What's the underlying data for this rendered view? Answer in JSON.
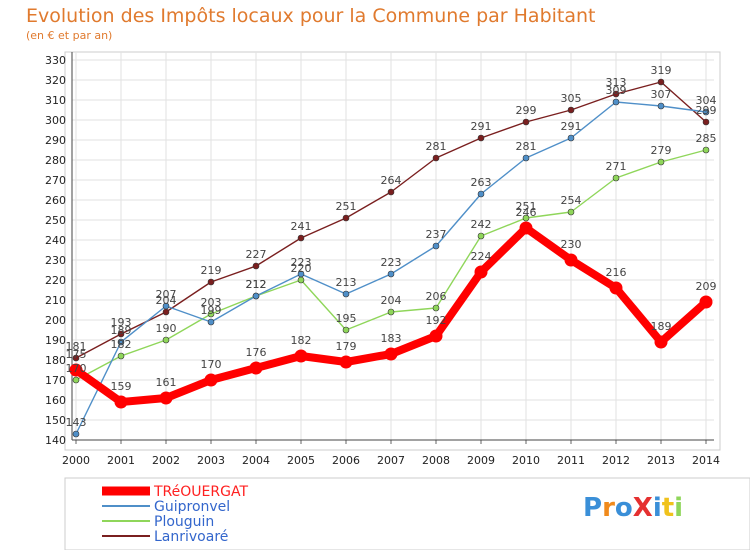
{
  "chart_data": {
    "type": "line",
    "title": "Evolution des Impôts locaux pour la Commune par Habitant",
    "subtitle": "(en € et par an)",
    "x": [
      "2000",
      "2001",
      "2002",
      "2003",
      "2004",
      "2005",
      "2006",
      "2007",
      "2008",
      "2009",
      "2010",
      "2011",
      "2012",
      "2013",
      "2014"
    ],
    "ylim": [
      140,
      330
    ],
    "yticks": [
      140,
      150,
      160,
      170,
      180,
      190,
      200,
      210,
      220,
      230,
      240,
      250,
      260,
      270,
      280,
      290,
      300,
      310,
      320,
      330
    ],
    "grid": true,
    "legend_position": "bottom-left",
    "series": [
      {
        "name": "TRéOUERGAT",
        "color": "#ff0000",
        "values": [
          175,
          159,
          161,
          170,
          176,
          182,
          179,
          183,
          192,
          224,
          246,
          230,
          216,
          189,
          209
        ]
      },
      {
        "name": "Guipronvel",
        "color": "#4f8fc8",
        "values": [
          143,
          189,
          207,
          199,
          212,
          223,
          213,
          223,
          237,
          263,
          281,
          291,
          309,
          307,
          304
        ]
      },
      {
        "name": "Plouguin",
        "color": "#8fd65a",
        "values": [
          170,
          182,
          190,
          203,
          212,
          220,
          195,
          204,
          206,
          242,
          251,
          254,
          271,
          279,
          285
        ]
      },
      {
        "name": "Lanrivoaré",
        "color": "#7a1f1f",
        "values": [
          181,
          193,
          204,
          219,
          227,
          241,
          251,
          264,
          281,
          291,
          299,
          305,
          313,
          319,
          299
        ]
      }
    ]
  },
  "logo": {
    "text": "ProXiti"
  }
}
